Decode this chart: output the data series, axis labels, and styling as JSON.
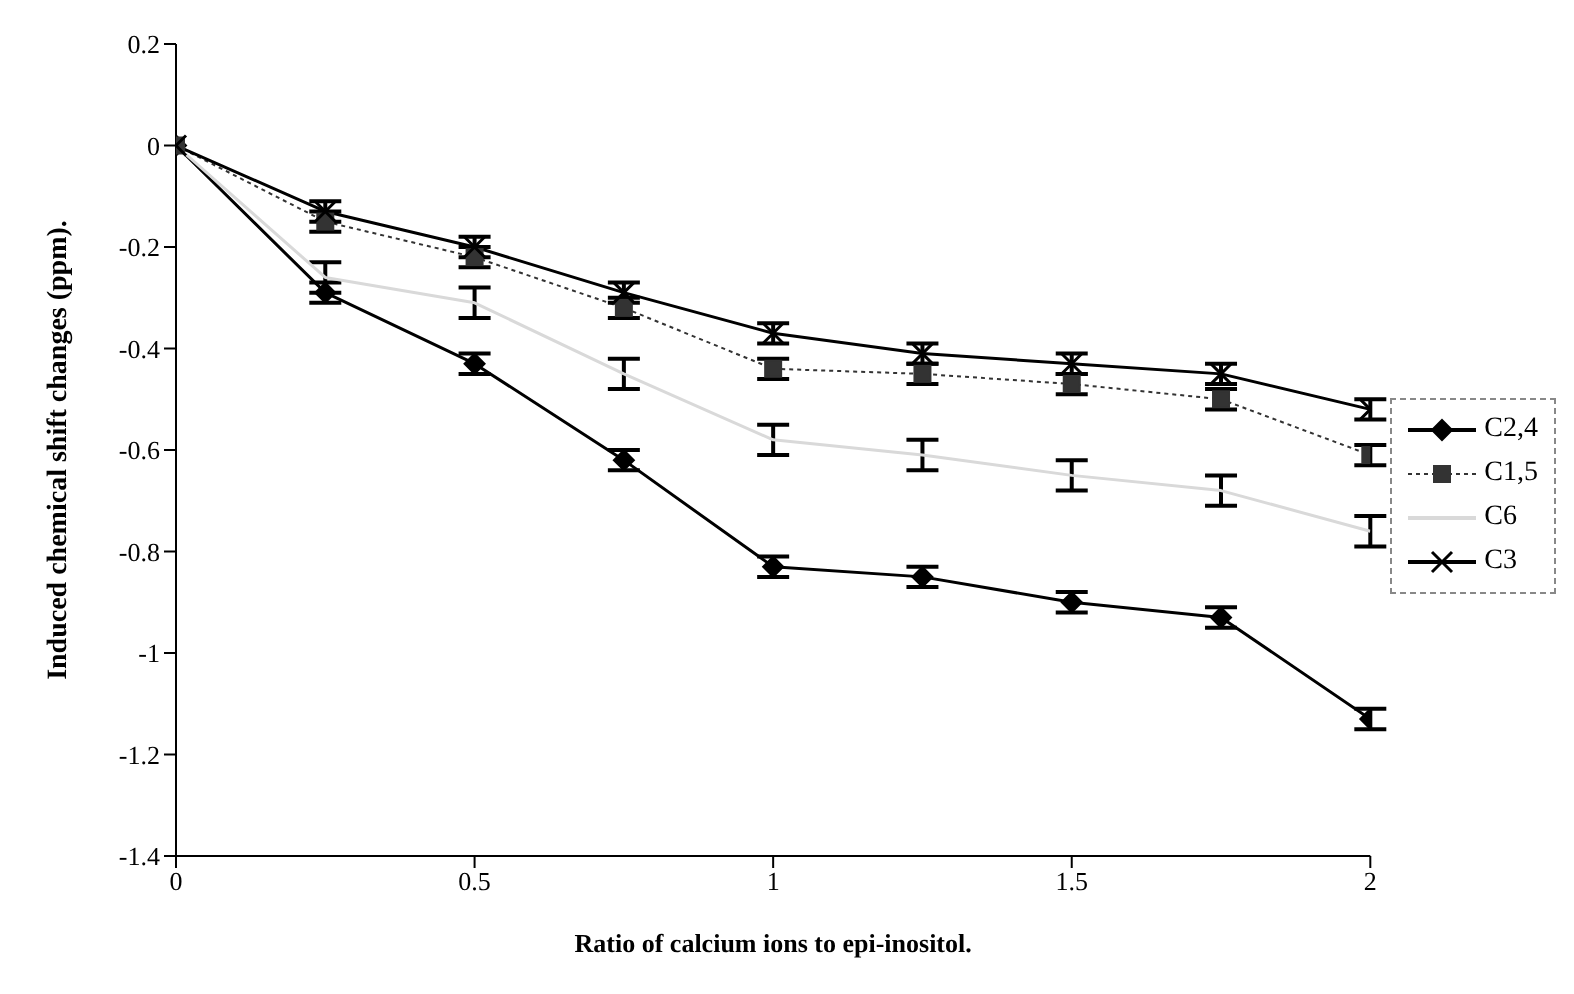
{
  "chart_data": {
    "type": "line",
    "xlabel": "Ratio of calcium ions to epi-inositol.",
    "ylabel": "Induced chemical shift changes (ppm).",
    "x": [
      0,
      0.25,
      0.5,
      0.75,
      1,
      1.25,
      1.5,
      1.75,
      2
    ],
    "xlim": [
      0,
      2
    ],
    "xticks": [
      0,
      0.5,
      1,
      1.5,
      2
    ],
    "ylim": [
      -1.4,
      0.2
    ],
    "yticks": [
      -1.4,
      -1.2,
      -1,
      -0.8,
      -0.6,
      -0.4,
      -0.2,
      0,
      0.2
    ],
    "legend": "right",
    "series": [
      {
        "name": "C2,4",
        "color": "#000000",
        "marker": "diamond",
        "line_style": "solid",
        "values": [
          0,
          -0.29,
          -0.43,
          -0.62,
          -0.83,
          -0.85,
          -0.9,
          -0.93,
          -1.13
        ],
        "errors": [
          null,
          0.02,
          0.02,
          0.02,
          0.02,
          0.02,
          0.02,
          0.02,
          0.02
        ]
      },
      {
        "name": "C1,5",
        "color": "#333333",
        "marker": "square",
        "line_style": "dotted",
        "values": [
          0,
          -0.15,
          -0.22,
          -0.32,
          -0.44,
          -0.45,
          -0.47,
          -0.5,
          -0.61
        ],
        "errors": [
          null,
          0.02,
          0.02,
          0.02,
          0.02,
          0.02,
          0.02,
          0.02,
          0.02
        ]
      },
      {
        "name": "C6",
        "color": "#d9d9d9",
        "marker": "none",
        "line_style": "solid",
        "values": [
          0,
          -0.26,
          -0.31,
          -0.45,
          -0.58,
          -0.61,
          -0.65,
          -0.68,
          -0.76
        ],
        "errors": [
          null,
          0.03,
          0.03,
          0.03,
          0.03,
          0.03,
          0.03,
          0.03,
          0.03
        ]
      },
      {
        "name": "C3",
        "color": "#000000",
        "marker": "cross",
        "line_style": "solid",
        "values": [
          0,
          -0.13,
          -0.2,
          -0.29,
          -0.37,
          -0.41,
          -0.43,
          -0.45,
          -0.52
        ],
        "errors": [
          null,
          0.02,
          0.02,
          0.02,
          0.02,
          0.02,
          0.02,
          0.02,
          0.02
        ]
      }
    ]
  }
}
